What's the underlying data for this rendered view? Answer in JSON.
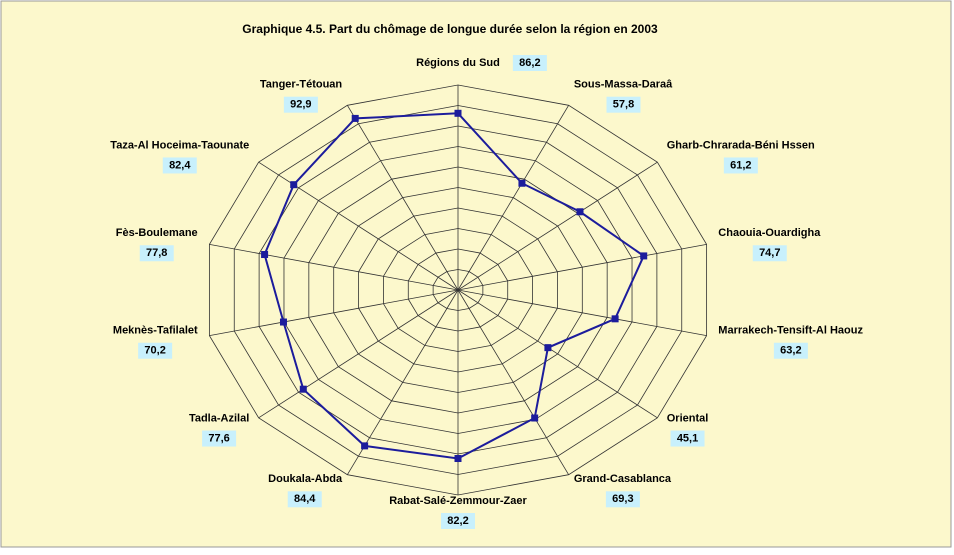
{
  "chart_data": {
    "type": "radar",
    "title": "Graphique 4.5. Part du chômage de longue durée selon la région en 2003",
    "categories": [
      "Régions du Sud",
      "Sous-Massa-Daraâ",
      "Gharb-Chrarada-Béni Hssen",
      "Chaouia-Ouardigha",
      "Marrakech-Tensift-Al Haouz",
      "Oriental",
      "Grand-Casablanca",
      "Rabat-Salé-Zemmour-Zaer",
      "Doukala-Abda",
      "Tadla-Azilal",
      "Meknès-Tafilalet",
      "Fès-Boulemane",
      "Taza-Al Hoceima-Taounate",
      "Tanger-Tétouan"
    ],
    "values": [
      86.2,
      57.8,
      61.2,
      74.7,
      63.2,
      45.1,
      69.3,
      82.2,
      84.4,
      77.6,
      70.2,
      77.8,
      82.4,
      92.9
    ],
    "value_labels": [
      "86,2",
      "57,8",
      "61,2",
      "74,7",
      "63,2",
      "45,1",
      "69,3",
      "82,2",
      "84,4",
      "77,6",
      "70,2",
      "77,8",
      "82,4",
      "92,9"
    ],
    "color": "#1c1c9c",
    "ylim": [
      0,
      100
    ],
    "yticks": [
      0,
      10,
      20,
      30,
      40,
      50,
      60,
      70,
      80,
      90,
      100
    ],
    "grid": true
  }
}
